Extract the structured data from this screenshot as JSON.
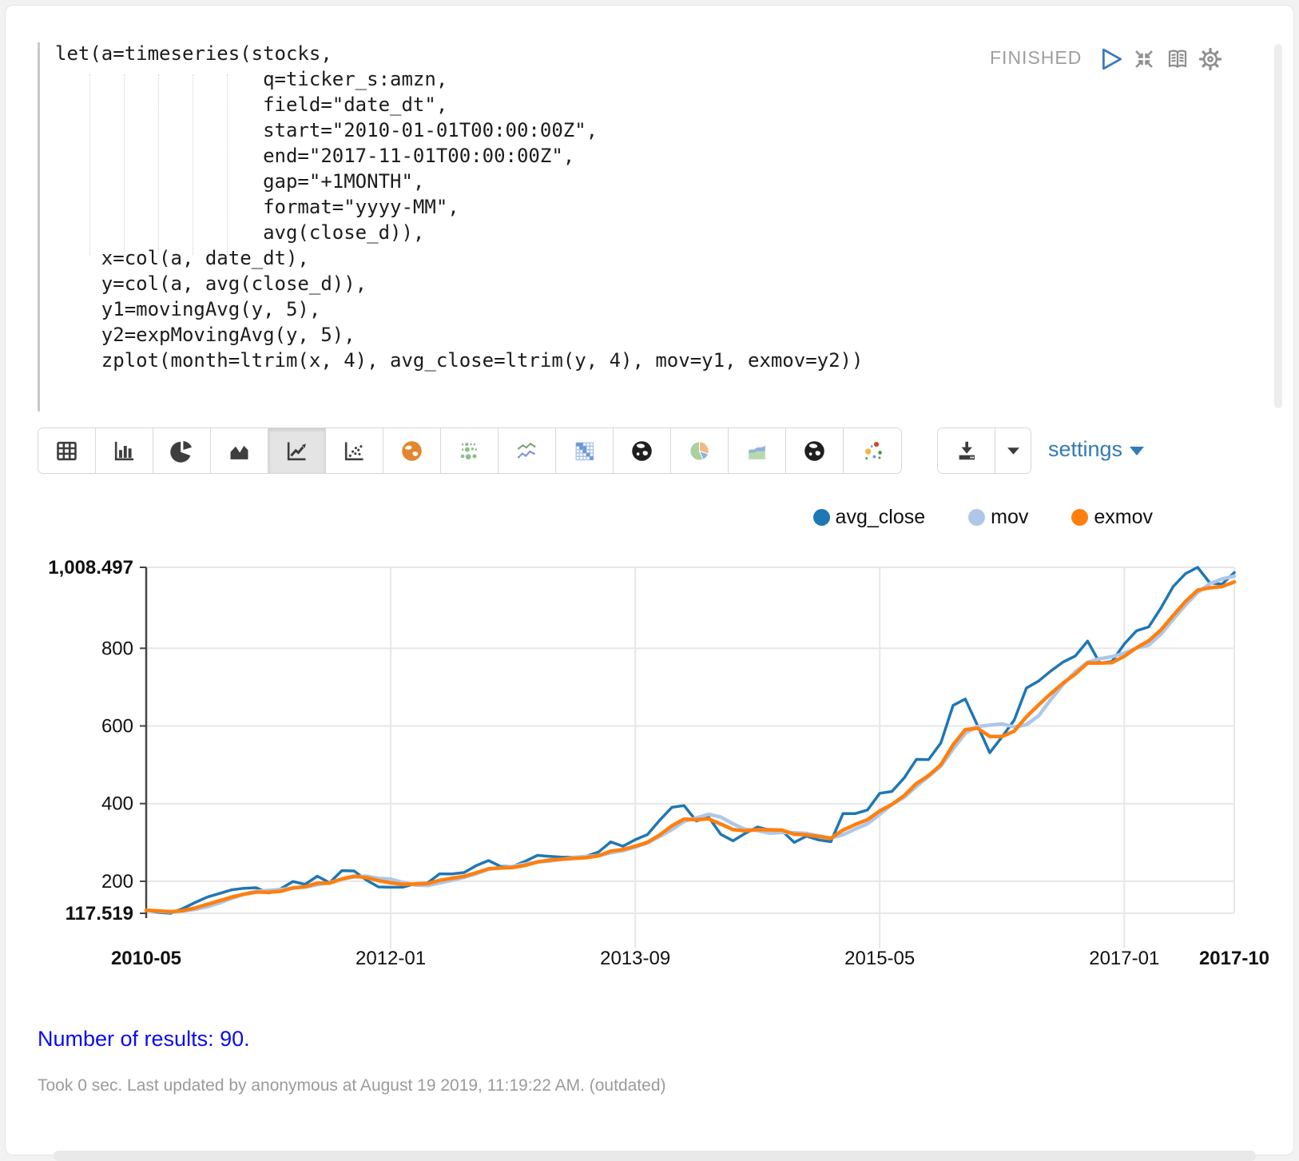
{
  "paragraph": {
    "status": "FINISHED",
    "code_lines": [
      "let(a=timeseries(stocks,",
      "                  q=ticker_s:amzn,",
      "                  field=\"date_dt\",",
      "                  start=\"2010-01-01T00:00:00Z\",",
      "                  end=\"2017-11-01T00:00:00Z\",",
      "                  gap=\"+1MONTH\",",
      "                  format=\"yyyy-MM\",",
      "                  avg(close_d)),",
      "    x=col(a, date_dt),",
      "    y=col(a, avg(close_d)),",
      "    y1=movingAvg(y, 5),",
      "    y2=expMovingAvg(y, 5),",
      "    zplot(month=ltrim(x, 4), avg_close=ltrim(y, 4), mov=y1, exmov=y2))"
    ]
  },
  "toolbar": {
    "chart_buttons": [
      {
        "name": "table",
        "selected": false
      },
      {
        "name": "bar-chart",
        "selected": false
      },
      {
        "name": "pie-chart",
        "selected": false
      },
      {
        "name": "area-chart",
        "selected": false
      },
      {
        "name": "line-chart",
        "selected": true
      },
      {
        "name": "scatter-plot",
        "selected": false
      },
      {
        "name": "map-orange",
        "selected": false
      },
      {
        "name": "bubble-grid",
        "selected": false
      },
      {
        "name": "multi-line",
        "selected": false
      },
      {
        "name": "heatmap",
        "selected": false
      },
      {
        "name": "globe-dark",
        "selected": false
      },
      {
        "name": "pie-color",
        "selected": false
      },
      {
        "name": "area-color",
        "selected": false
      },
      {
        "name": "globe-dark-2",
        "selected": false
      },
      {
        "name": "scatter-color",
        "selected": false
      }
    ],
    "settings_label": "settings"
  },
  "legend": [
    {
      "label": "avg_close",
      "color": "#1f77b4"
    },
    {
      "label": "mov",
      "color": "#aec7e8"
    },
    {
      "label": "exmov",
      "color": "#ff7f0e"
    }
  ],
  "chart_data": {
    "type": "line",
    "title": "",
    "xlabel": "",
    "ylabel": "",
    "ylim": [
      117.519,
      1008.497
    ],
    "grid": true,
    "legend_position": "top-right",
    "grid_color": "#e7e7e7",
    "axis_color": "#444444",
    "label_color": "#111111",
    "y_ticks": [
      {
        "value": 1008.497,
        "label": "1,008.497",
        "bold": true
      },
      {
        "value": 800,
        "label": "800",
        "bold": false
      },
      {
        "value": 600,
        "label": "600",
        "bold": false
      },
      {
        "value": 400,
        "label": "400",
        "bold": false
      },
      {
        "value": 200,
        "label": "200",
        "bold": false
      },
      {
        "value": 117.519,
        "label": "117.519",
        "bold": true
      }
    ],
    "x_ticks": [
      {
        "index": 0,
        "label": "2010-05",
        "bold": true
      },
      {
        "index": 20,
        "label": "2012-01",
        "bold": false
      },
      {
        "index": 40,
        "label": "2013-09",
        "bold": false
      },
      {
        "index": 60,
        "label": "2015-05",
        "bold": false
      },
      {
        "index": 80,
        "label": "2017-01",
        "bold": false
      },
      {
        "index": 89,
        "label": "2017-10",
        "bold": true
      }
    ],
    "x": [
      "2010-05",
      "2010-06",
      "2010-07",
      "2010-08",
      "2010-09",
      "2010-10",
      "2010-11",
      "2010-12",
      "2011-01",
      "2011-02",
      "2011-03",
      "2011-04",
      "2011-05",
      "2011-06",
      "2011-07",
      "2011-08",
      "2011-09",
      "2011-10",
      "2011-11",
      "2011-12",
      "2012-01",
      "2012-02",
      "2012-03",
      "2012-04",
      "2012-05",
      "2012-06",
      "2012-07",
      "2012-08",
      "2012-09",
      "2012-10",
      "2012-11",
      "2012-12",
      "2013-01",
      "2013-02",
      "2013-03",
      "2013-04",
      "2013-05",
      "2013-06",
      "2013-07",
      "2013-08",
      "2013-09",
      "2013-10",
      "2013-11",
      "2013-12",
      "2014-01",
      "2014-02",
      "2014-03",
      "2014-04",
      "2014-05",
      "2014-06",
      "2014-07",
      "2014-08",
      "2014-09",
      "2014-10",
      "2014-11",
      "2014-12",
      "2015-01",
      "2015-02",
      "2015-03",
      "2015-04",
      "2015-05",
      "2015-06",
      "2015-07",
      "2015-08",
      "2015-09",
      "2015-10",
      "2015-11",
      "2015-12",
      "2016-01",
      "2016-02",
      "2016-03",
      "2016-04",
      "2016-05",
      "2016-06",
      "2016-07",
      "2016-08",
      "2016-09",
      "2016-10",
      "2016-11",
      "2016-12",
      "2017-01",
      "2017-02",
      "2017-03",
      "2017-04",
      "2017-05",
      "2017-06",
      "2017-07",
      "2017-08",
      "2017-09",
      "2017-10"
    ],
    "series": [
      {
        "name": "avg_close",
        "color": "#1f77b4",
        "width": 3.5,
        "values": [
          125.5,
          119.8,
          117.519,
          129.8,
          145.2,
          159.2,
          168.6,
          178.1,
          181.9,
          183.3,
          169.7,
          180.4,
          199.5,
          192.1,
          213.1,
          196.2,
          227.3,
          226.6,
          203.1,
          185.5,
          184.7,
          184.9,
          194.0,
          195.6,
          219.2,
          219.0,
          222.4,
          240.4,
          253.4,
          238.2,
          238.6,
          251.5,
          266.8,
          264.3,
          262.2,
          262.3,
          264.6,
          275.4,
          301.5,
          290.2,
          307.0,
          320.2,
          357.1,
          390.4,
          394.8,
          355.2,
          365.2,
          320.8,
          304.1,
          323.4,
          339.8,
          331.4,
          330.3,
          300.0,
          316.1,
          306.5,
          301.8,
          374.5,
          374.3,
          383.5,
          426.5,
          431.3,
          466.0,
          513.9,
          513.4,
          556.3,
          652.9,
          669.3,
          601.1,
          531.1,
          571.7,
          614.8,
          697.5,
          715.6,
          741.6,
          764.6,
          780.4,
          818.5,
          761.5,
          766.4,
          811.0,
          845.1,
          854.9,
          903.7,
          959.0,
          991.9,
          1008.497,
          968.3,
          965.0,
          995.0
        ]
      },
      {
        "name": "mov",
        "color": "#aec7e8",
        "width": 4.5,
        "values": [
          125.5,
          122.7,
          120.9,
          123.2,
          127.6,
          134.3,
          144.1,
          156.2,
          166.6,
          174.2,
          176.3,
          178.7,
          183.0,
          185.0,
          191.0,
          196.3,
          205.6,
          211.1,
          213.3,
          207.7,
          205.4,
          197.0,
          190.4,
          188.9,
          195.7,
          202.5,
          210.0,
          219.3,
          230.9,
          234.7,
          238.6,
          244.4,
          249.7,
          251.9,
          256.7,
          261.4,
          264.0,
          265.8,
          273.2,
          278.8,
          287.7,
          298.9,
          315.2,
          333.0,
          353.9,
          363.5,
          372.5,
          365.3,
          348.0,
          333.7,
          330.7,
          323.9,
          325.8,
          325.0,
          323.5,
          316.9,
          310.9,
          319.8,
          334.6,
          348.1,
          372.1,
          398.0,
          416.3,
          444.2,
          470.2,
          496.2,
          540.5,
          581.2,
          598.6,
          602.1,
          605.2,
          597.6,
          603.2,
          626.1,
          668.2,
          706.8,
          739.9,
          764.1,
          773.3,
          778.3,
          787.6,
          800.5,
          807.8,
          836.2,
          874.7,
          910.9,
          943.6,
          966.3,
          978.5,
          985.7
        ]
      },
      {
        "name": "exmov",
        "color": "#ff7f0e",
        "width": 4.5,
        "values": [
          125.5,
          123.6,
          121.6,
          124.3,
          131.3,
          140.6,
          149.9,
          159.3,
          166.8,
          172.3,
          171.4,
          174.4,
          182.8,
          185.9,
          195.0,
          195.4,
          206.0,
          212.9,
          209.6,
          201.6,
          196.0,
          192.3,
          192.9,
          193.8,
          202.3,
          207.9,
          212.7,
          221.9,
          232.4,
          234.3,
          235.7,
          241.0,
          249.6,
          254.5,
          257.1,
          258.8,
          260.7,
          265.6,
          277.6,
          281.8,
          290.2,
          300.2,
          319.2,
          342.9,
          360.2,
          358.5,
          360.7,
          347.4,
          333.0,
          329.8,
          333.1,
          332.5,
          331.8,
          321.2,
          319.5,
          315.2,
          310.7,
          332.0,
          346.1,
          358.6,
          381.2,
          397.9,
          420.6,
          451.7,
          472.3,
          500.3,
          551.2,
          590.6,
          594.1,
          573.1,
          572.6,
          586.7,
          623.6,
          654.3,
          683.4,
          710.5,
          733.8,
          762.0,
          761.8,
          763.3,
          779.2,
          801.2,
          819.1,
          847.3,
          884.5,
          920.3,
          949.7,
          955.9,
          958.9,
          970.9
        ]
      }
    ]
  },
  "results": {
    "summary": "Number of results: 90."
  },
  "footer": {
    "status_line": "Took 0 sec. Last updated by anonymous at August 19 2019, 11:19:22 AM. (outdated)"
  },
  "colors": {
    "accent_link": "#337ab7",
    "play_icon": "#3b78c3",
    "status_text": "#9e9e9e",
    "results_text": "#0b0bef",
    "footer_text": "#9b9b9b",
    "grid": "#e7e7e7"
  }
}
